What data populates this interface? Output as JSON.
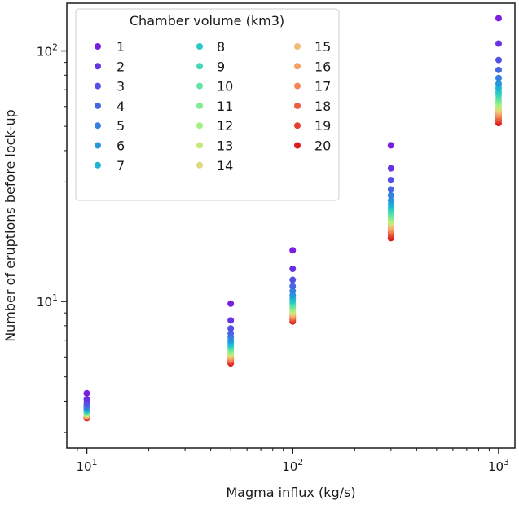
{
  "chart_data": {
    "type": "scatter",
    "title": "",
    "xlabel": "Magma influx (kg/s)",
    "ylabel": "Number of eruptions before lock-up",
    "x_scale": "log",
    "y_scale": "log",
    "xlim": [
      8,
      1200
    ],
    "ylim": [
      2.6,
      155
    ],
    "x_ticks": [
      {
        "value": 10,
        "base": "10",
        "exp": "1"
      },
      {
        "value": 100,
        "base": "10",
        "exp": "2"
      },
      {
        "value": 1000,
        "base": "10",
        "exp": "3"
      }
    ],
    "y_ticks": [
      {
        "value": 10,
        "base": "10",
        "exp": "1"
      },
      {
        "value": 100,
        "base": "10",
        "exp": "2"
      }
    ],
    "grid": false,
    "x": [
      10,
      50,
      100,
      300,
      1000
    ],
    "legend": {
      "title": "Chamber volume (km3)",
      "placement": "top-left",
      "columns": 3
    },
    "series": [
      {
        "name": "1",
        "color": "#7a1fe0",
        "values": [
          4.3,
          9.8,
          16.0,
          42.0,
          135.0
        ]
      },
      {
        "name": "2",
        "color": "#6633e3",
        "values": [
          4.07,
          8.4,
          13.5,
          34.0,
          107.0
        ]
      },
      {
        "name": "3",
        "color": "#5550e4",
        "values": [
          3.95,
          7.8,
          12.2,
          30.5,
          92.0
        ]
      },
      {
        "name": "4",
        "color": "#4568e2",
        "values": [
          3.86,
          7.45,
          11.5,
          28.0,
          84.0
        ]
      },
      {
        "name": "5",
        "color": "#3580e0",
        "values": [
          3.8,
          7.2,
          11.0,
          26.5,
          78.0
        ]
      },
      {
        "name": "6",
        "color": "#2598dc",
        "values": [
          3.75,
          7.0,
          10.6,
          25.3,
          74.0
        ]
      },
      {
        "name": "7",
        "color": "#1eb4d6",
        "values": [
          3.71,
          6.85,
          10.3,
          24.4,
          71.0
        ]
      },
      {
        "name": "8",
        "color": "#29c9c8",
        "values": [
          3.68,
          6.72,
          10.05,
          23.6,
          68.5
        ]
      },
      {
        "name": "9",
        "color": "#46d7b5",
        "values": [
          3.65,
          6.6,
          9.85,
          22.9,
          66.5
        ]
      },
      {
        "name": "10",
        "color": "#66e2a3",
        "values": [
          3.62,
          6.5,
          9.65,
          22.3,
          64.5
        ]
      },
      {
        "name": "11",
        "color": "#84eb92",
        "values": [
          3.6,
          6.4,
          9.48,
          21.8,
          63.0
        ]
      },
      {
        "name": "12",
        "color": "#a3ef84",
        "values": [
          3.58,
          6.3,
          9.32,
          21.3,
          61.5
        ]
      },
      {
        "name": "13",
        "color": "#c2ea7b",
        "values": [
          3.56,
          6.22,
          9.18,
          20.8,
          60.0
        ]
      },
      {
        "name": "14",
        "color": "#dbd97a",
        "values": [
          3.54,
          6.14,
          9.05,
          20.4,
          58.8
        ]
      },
      {
        "name": "15",
        "color": "#f0bc73",
        "values": [
          3.52,
          6.06,
          8.92,
          20.0,
          57.6
        ]
      },
      {
        "name": "16",
        "color": "#f5a064",
        "values": [
          3.5,
          5.98,
          8.8,
          19.6,
          56.4
        ]
      },
      {
        "name": "17",
        "color": "#f18553",
        "values": [
          3.48,
          5.9,
          8.68,
          19.2,
          55.2
        ]
      },
      {
        "name": "18",
        "color": "#ea6040",
        "values": [
          3.46,
          5.82,
          8.56,
          18.8,
          54.0
        ]
      },
      {
        "name": "19",
        "color": "#e43e2e",
        "values": [
          3.44,
          5.74,
          8.44,
          18.4,
          52.8
        ]
      },
      {
        "name": "20",
        "color": "#dd1c1c",
        "values": [
          3.42,
          5.66,
          8.32,
          17.9,
          51.5
        ]
      }
    ]
  }
}
